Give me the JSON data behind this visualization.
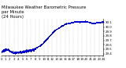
{
  "title": "Milwaukee Weather Barometric Pressure\nper Minute\n(24 Hours)",
  "title_fontsize": 3.8,
  "dot_color": "#0000cc",
  "dot_size": 0.5,
  "background_color": "#ffffff",
  "grid_color": "#bbbbbb",
  "xlim": [
    0,
    1440
  ],
  "ylim": [
    29.35,
    30.18
  ],
  "ytick_labels": [
    "29.4",
    "29.5",
    "29.6",
    "29.7",
    "29.8",
    "29.9",
    "30.0",
    "30.1"
  ],
  "ytick_values": [
    29.4,
    29.5,
    29.6,
    29.7,
    29.8,
    29.9,
    30.0,
    30.1
  ],
  "xtick_values": [
    0,
    60,
    120,
    180,
    240,
    300,
    360,
    420,
    480,
    540,
    600,
    660,
    720,
    780,
    840,
    900,
    960,
    1020,
    1080,
    1140,
    1200,
    1260,
    1320,
    1380,
    1440
  ],
  "xtick_labels": [
    "0",
    "1",
    "2",
    "3",
    "4",
    "5",
    "6",
    "7",
    "8",
    "9",
    "10",
    "11",
    "12",
    "13",
    "14",
    "15",
    "16",
    "17",
    "18",
    "19",
    "20",
    "21",
    "22",
    "23",
    "24"
  ]
}
